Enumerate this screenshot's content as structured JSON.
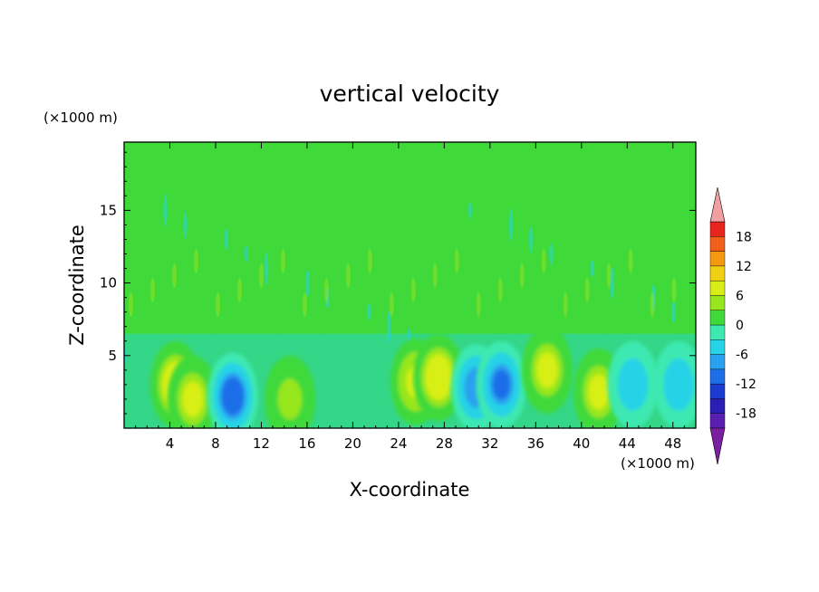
{
  "chart_data": {
    "type": "heatmap",
    "title": "vertical velocity",
    "xlabel": "X-coordinate",
    "ylabel": "Z-coordinate",
    "x_unit": "(×1000 m)",
    "y_unit": "(×1000 m)",
    "xlim": [
      0,
      50
    ],
    "ylim": [
      0,
      19.7
    ],
    "x_ticks": [
      4,
      8,
      12,
      16,
      20,
      24,
      28,
      32,
      36,
      40,
      44,
      48
    ],
    "y_ticks": [
      5,
      10,
      15
    ],
    "colorbar": {
      "ticks": [
        18,
        12,
        6,
        0,
        -6,
        -12,
        -18
      ],
      "levels": [
        -21,
        -18,
        -15,
        -12,
        -9,
        -6,
        -3,
        0,
        3,
        6,
        9,
        12,
        15,
        18,
        21
      ],
      "colors": [
        "#7a1fa0",
        "#5a1fb0",
        "#2a1fb5",
        "#1a3ad0",
        "#1e6ee8",
        "#2aa0f0",
        "#27d3e6",
        "#3ee9b0",
        "#3fd93a",
        "#98e61e",
        "#d8ef17",
        "#f0d012",
        "#f59a10",
        "#f0601a",
        "#e8241e",
        "#f0a0a0"
      ],
      "extend": "both"
    },
    "features": [
      {
        "x": 4.5,
        "z": 3.0,
        "value": 8
      },
      {
        "x": 6.0,
        "z": 2.0,
        "value": 6
      },
      {
        "x": 9.5,
        "z": 2.2,
        "value": -11
      },
      {
        "x": 14.5,
        "z": 2.0,
        "value": 4
      },
      {
        "x": 25.5,
        "z": 3.2,
        "value": 7
      },
      {
        "x": 27.5,
        "z": 3.5,
        "value": 8
      },
      {
        "x": 30.8,
        "z": 2.8,
        "value": -9
      },
      {
        "x": 33.0,
        "z": 3.0,
        "value": -10
      },
      {
        "x": 37.0,
        "z": 4.0,
        "value": 6
      },
      {
        "x": 41.5,
        "z": 2.5,
        "value": 6
      },
      {
        "x": 44.5,
        "z": 3.0,
        "value": -5
      },
      {
        "x": 48.5,
        "z": 3.0,
        "value": -6
      }
    ]
  }
}
